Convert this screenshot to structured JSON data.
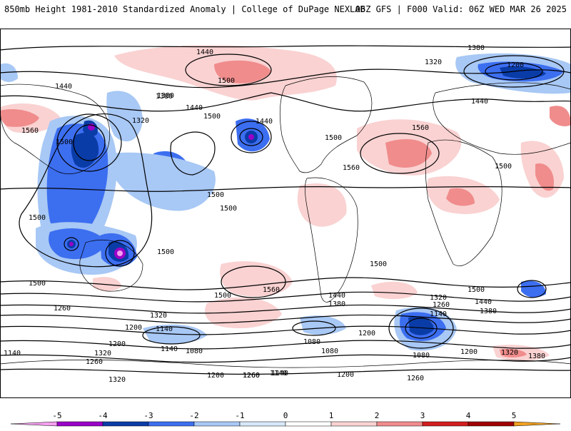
{
  "header": {
    "title": "850mb Height 1981-2010 Standardized Anomaly | College of DuPage NEXLAB",
    "valid": "06Z GFS | F000 Valid: 06Z WED MAR 26 2025"
  },
  "colorbar": {
    "ticks": [
      "-5",
      "-4",
      "-3",
      "-2",
      "-1",
      "0",
      "1",
      "2",
      "3",
      "4",
      "5"
    ],
    "colors": [
      "#f5a0f0",
      "#9a00c8",
      "#0a3ca8",
      "#3c6ef0",
      "#a8c8f5",
      "#d8e8fa",
      "#ffffff",
      "#fad2d2",
      "#f08c8c",
      "#d21e1e",
      "#a00000",
      "#f0a020"
    ]
  },
  "contours": {
    "labels": [
      {
        "text": "1440"
      },
      {
        "text": "1500"
      },
      {
        "text": "1380"
      },
      {
        "text": "1320"
      },
      {
        "text": "1200"
      },
      {
        "text": "1440"
      },
      {
        "text": "1500"
      },
      {
        "text": "1560"
      },
      {
        "text": "1500"
      },
      {
        "text": "1380"
      },
      {
        "text": "1320"
      },
      {
        "text": "1440"
      },
      {
        "text": "1500"
      },
      {
        "text": "1560"
      },
      {
        "text": "1500"
      },
      {
        "text": "1440"
      },
      {
        "text": "1500"
      },
      {
        "text": "1560"
      },
      {
        "text": "1500"
      },
      {
        "text": "1500"
      },
      {
        "text": "1500"
      },
      {
        "text": "1500"
      },
      {
        "text": "1560"
      },
      {
        "text": "1440"
      },
      {
        "text": "1380"
      },
      {
        "text": "1320"
      },
      {
        "text": "1260"
      },
      {
        "text": "1200"
      },
      {
        "text": "1140"
      },
      {
        "text": "1080"
      },
      {
        "text": "1140"
      },
      {
        "text": "1320"
      },
      {
        "text": "1260"
      },
      {
        "text": "1200"
      },
      {
        "text": "1320"
      },
      {
        "text": "1140"
      },
      {
        "text": "1080"
      },
      {
        "text": "1200"
      },
      {
        "text": "1260"
      },
      {
        "text": "1140"
      },
      {
        "text": "1200"
      },
      {
        "text": "1500"
      },
      {
        "text": "1440"
      },
      {
        "text": "1380"
      },
      {
        "text": "1320"
      },
      {
        "text": "1260"
      },
      {
        "text": "1140"
      },
      {
        "text": "1200"
      },
      {
        "text": "1080"
      },
      {
        "text": "1200"
      },
      {
        "text": "1320"
      },
      {
        "text": "1380"
      },
      {
        "text": "1440"
      },
      {
        "text": "1380"
      },
      {
        "text": "1500"
      },
      {
        "text": "1500"
      },
      {
        "text": "1260"
      },
      {
        "text": "1080"
      },
      {
        "text": "1140"
      },
      {
        "text": "1260"
      }
    ]
  }
}
